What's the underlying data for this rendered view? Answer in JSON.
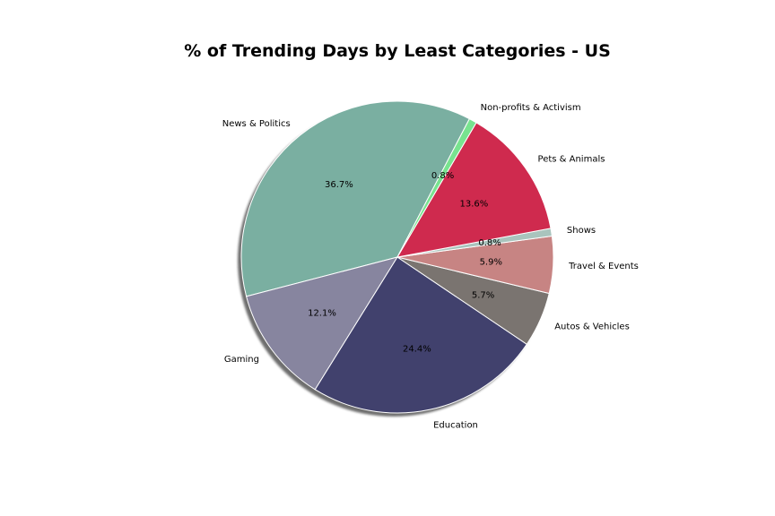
{
  "chart_data": {
    "type": "pie",
    "title": "% of Trending Days by Least Categories - US",
    "slices": [
      {
        "label": "News & Politics",
        "value": 36.7,
        "pct_label": "36.7%",
        "color": "#7aafa1"
      },
      {
        "label": "Gaming",
        "value": 12.1,
        "pct_label": "12.1%",
        "color": "#87859f"
      },
      {
        "label": "Education",
        "value": 24.4,
        "pct_label": "24.4%",
        "color": "#41416d"
      },
      {
        "label": "Autos & Vehicles",
        "value": 5.7,
        "pct_label": "5.7%",
        "color": "#7a7470"
      },
      {
        "label": "Travel & Events",
        "value": 5.9,
        "pct_label": "5.9%",
        "color": "#c78483"
      },
      {
        "label": "Shows",
        "value": 0.8,
        "pct_label": "0.8%",
        "color": "#a9c4bd"
      },
      {
        "label": "Pets & Animals",
        "value": 13.6,
        "pct_label": "13.6%",
        "color": "#cf2a4e"
      },
      {
        "label": "Non-profits & Activism",
        "value": 0.8,
        "pct_label": "0.8%",
        "color": "#78e38f"
      }
    ],
    "start_angle_deg": 62.5,
    "direction": "counterclockwise",
    "shadow": true,
    "legend": "none"
  }
}
